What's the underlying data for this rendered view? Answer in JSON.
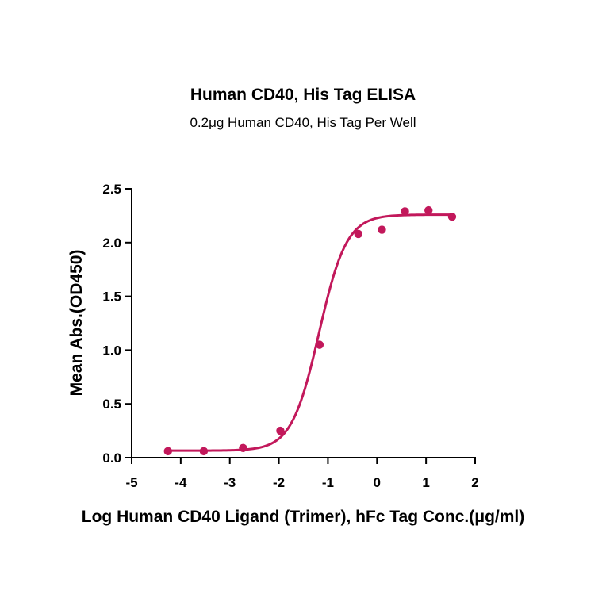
{
  "chart_data": {
    "type": "scatter",
    "title": "Human CD40, His Tag ELISA",
    "subtitle": "0.2μg Human CD40, His Tag Per Well",
    "xlabel": "Log Human CD40 Ligand (Trimer), hFc Tag Conc.(μg/ml)",
    "ylabel": "Mean Abs.(OD450)",
    "xlim": [
      -5,
      2
    ],
    "ylim": [
      0,
      2.5
    ],
    "xticks": [
      "-5",
      "-4",
      "-3",
      "-2",
      "-1",
      "0",
      "1",
      "2"
    ],
    "yticks": [
      "0.0",
      "0.5",
      "1.0",
      "1.5",
      "2.0",
      "2.5"
    ],
    "grid": false,
    "color": "#c2185b",
    "series": [
      {
        "x": [
          -4.26,
          -3.53,
          -2.73,
          -1.97,
          -1.17,
          -0.38,
          0.1,
          0.57,
          1.05,
          1.53
        ],
        "y": [
          0.06,
          0.06,
          0.09,
          0.25,
          1.05,
          2.08,
          2.12,
          2.29,
          2.3,
          2.24
        ],
        "fit": "4PL sigmoid",
        "fit_params": {
          "bottom": 0.065,
          "top": 2.26,
          "logEC50": -1.18,
          "hill": 1.55
        }
      }
    ]
  }
}
